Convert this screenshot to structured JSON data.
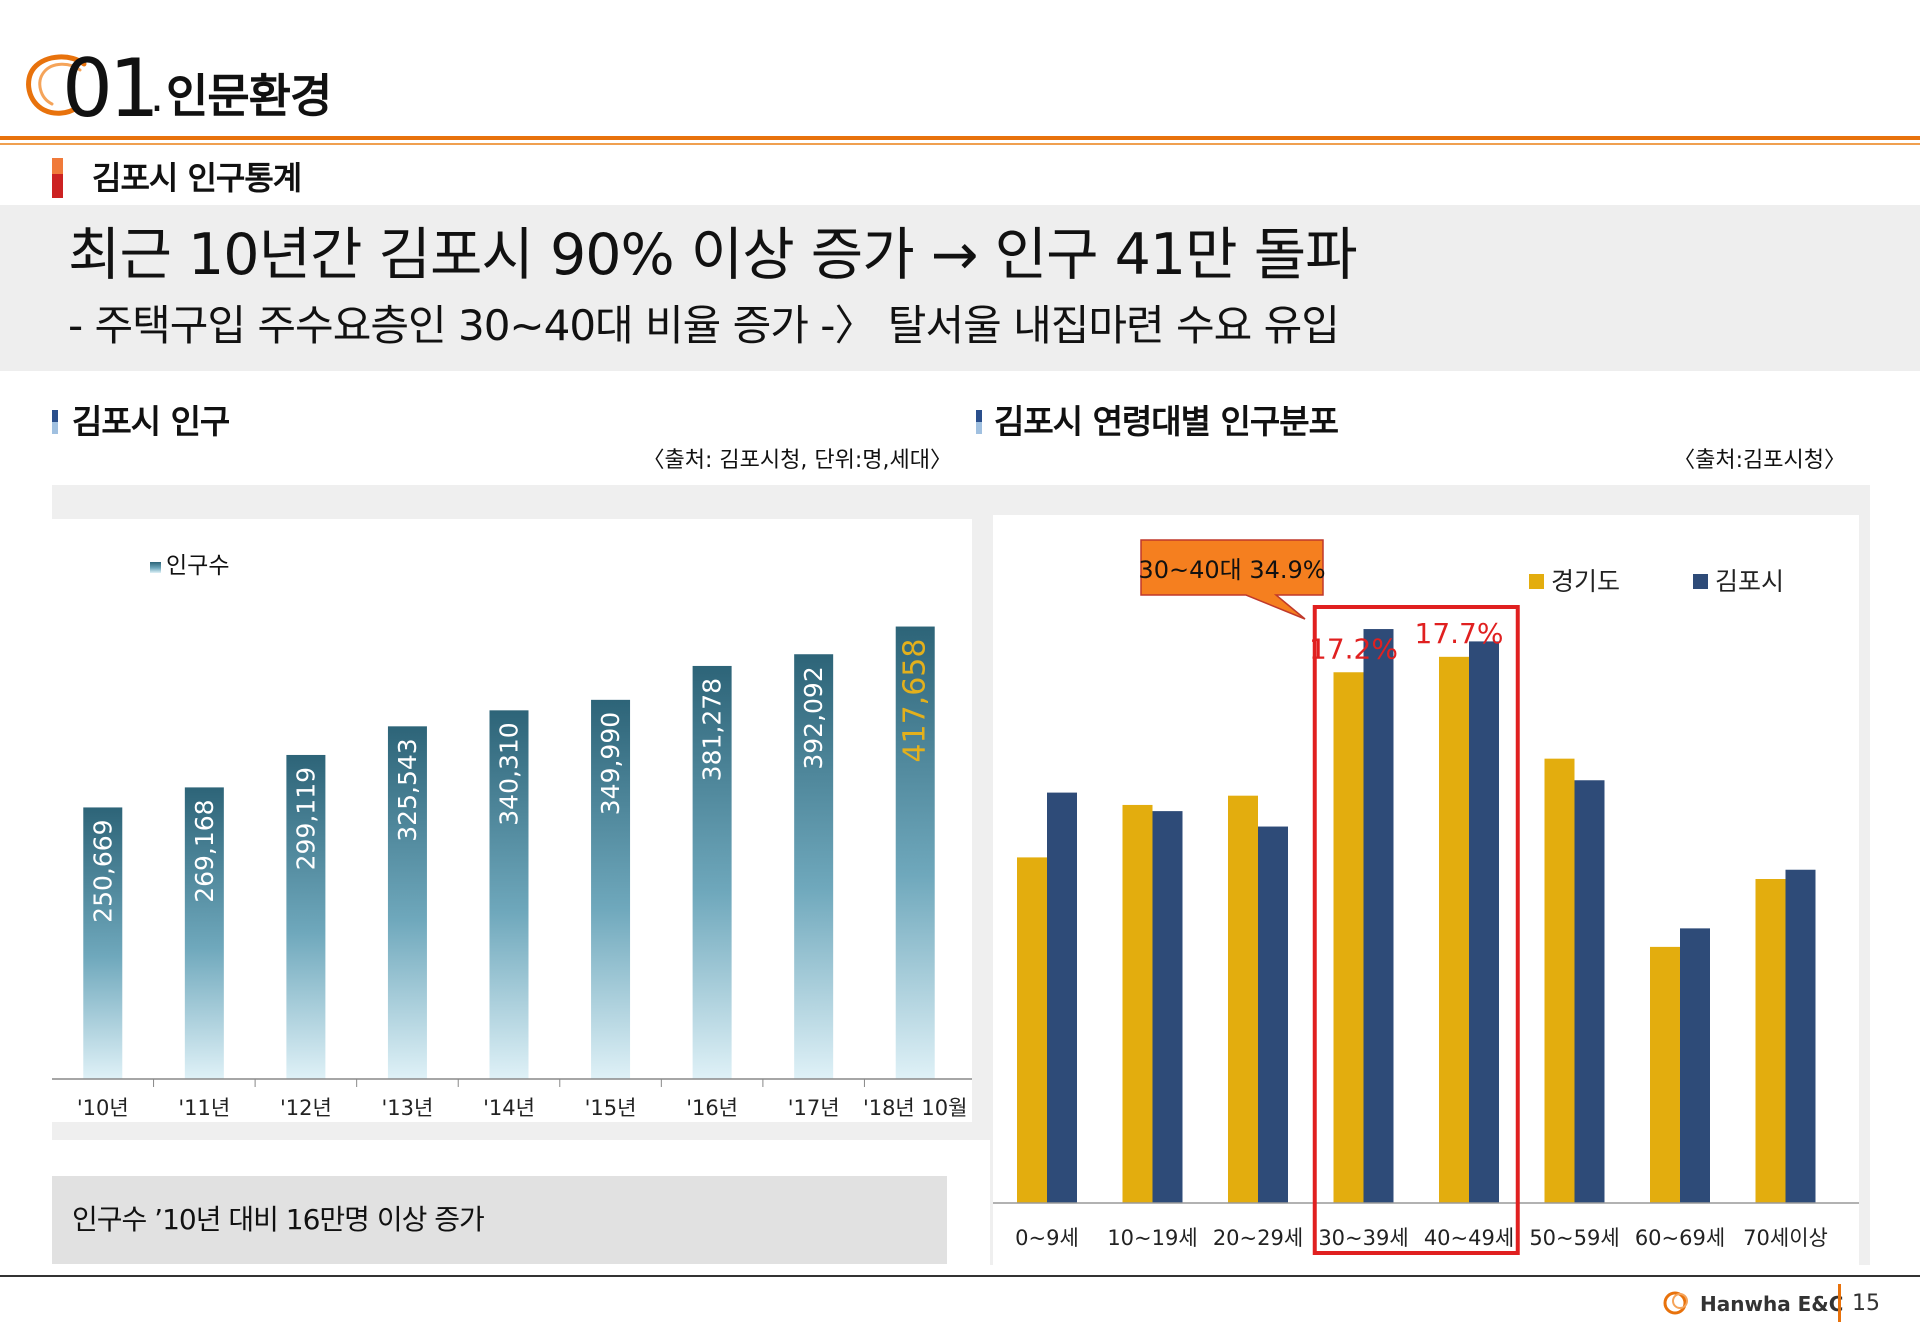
{
  "header": {
    "section_number": "01",
    "section_dot": ".",
    "section_title": "인문환경",
    "sub_heading": "김포시 인구통계"
  },
  "banner": {
    "headline": "최근 10년간 김포시 90% 이상 증가 → 인구 41만 돌파",
    "subline": "- 주택구입 주수요층인 30~40대 비율 증가 -〉 탈서울 내집마련 수요 유입"
  },
  "left_panel": {
    "title": "김포시 인구",
    "source": "〈출처: 김포시청, 단위:명,세대〉",
    "note": "인구수 ’10년 대비 16만명 이상 증가"
  },
  "right_panel": {
    "title": "김포시 연령대별 인구분포",
    "source": "〈출처:김포시청〉"
  },
  "colors": {
    "accent_orange": "#e8720c",
    "bar_teal_top": "#2d6478",
    "bar_teal_bottom": "#dff1f7",
    "highlight_value": "#e3b01c",
    "gyeonggi": "#e3ad0e",
    "gimpo": "#2e4b78",
    "highlight_box": "#e02020",
    "callout_fill": "#f57f1f"
  },
  "chart_data": [
    {
      "type": "bar",
      "title": "김포시 인구",
      "legend": "인구수",
      "legend_position": "top-left",
      "categories": [
        "'10년",
        "'11년",
        "'12년",
        "'13년",
        "'14년",
        "'15년",
        "'16년",
        "'17년",
        "'18년 10월"
      ],
      "values": [
        250669,
        269168,
        299119,
        325543,
        340310,
        349990,
        381278,
        392092,
        417658
      ],
      "labels": [
        "250,669",
        "269,168",
        "299,119",
        "325,543",
        "340,310",
        "349,990",
        "381,278",
        "392,092",
        "417,658"
      ],
      "highlight_index": 8,
      "ylim": [
        0,
        480000
      ]
    },
    {
      "type": "bar",
      "title": "김포시 연령대별 인구분포",
      "categories": [
        "0~9세",
        "10~19세",
        "20~29세",
        "30~39세",
        "40~49세",
        "50~59세",
        "60~69세",
        "70세이상"
      ],
      "series": [
        {
          "name": "경기도",
          "values": [
            11.2,
            12.9,
            13.2,
            17.2,
            17.7,
            14.4,
            8.3,
            10.5
          ]
        },
        {
          "name": "김포시",
          "values": [
            13.3,
            12.7,
            12.2,
            18.6,
            18.2,
            13.7,
            8.9,
            10.8
          ]
        }
      ],
      "annotations": {
        "30~39세": "17.2%",
        "40~49세": "17.7%"
      },
      "callout": "30~40대 34.9%",
      "highlight_categories": [
        "30~39세",
        "40~49세"
      ],
      "legend_position": "top-right",
      "ylim": [
        0,
        21
      ]
    }
  ],
  "footer": {
    "brand": "Hanwha E&C",
    "page_number": "15"
  }
}
